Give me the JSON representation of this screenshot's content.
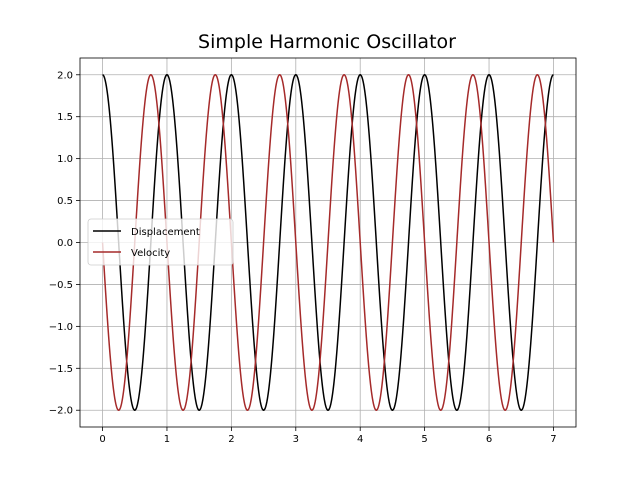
{
  "chart_data": {
    "type": "line",
    "title": "Simple Harmonic Oscillator",
    "xlabel": "",
    "ylabel": "",
    "xlim": [
      -0.35,
      7.35
    ],
    "ylim": [
      -2.2,
      2.2
    ],
    "xticks": [
      0,
      1,
      2,
      3,
      4,
      5,
      6,
      7
    ],
    "xtick_labels": [
      "0",
      "1",
      "2",
      "3",
      "4",
      "5",
      "6",
      "7"
    ],
    "yticks": [
      -2.0,
      -1.5,
      -1.0,
      -0.5,
      0.0,
      0.5,
      1.0,
      1.5,
      2.0
    ],
    "ytick_labels": [
      "−2.0",
      "−1.5",
      "−1.0",
      "−0.5",
      "0.0",
      "0.5",
      "1.0",
      "1.5",
      "2.0"
    ],
    "grid": true,
    "legend_position": "center-left",
    "series": [
      {
        "name": "Displacement",
        "color": "#000000",
        "function": "2*cos(2*pi*t)",
        "x_range": [
          0,
          7
        ],
        "peaks_at_x": [
          0,
          1,
          2,
          3,
          4,
          5,
          6,
          7
        ],
        "troughs_at_x": [
          0.5,
          1.5,
          2.5,
          3.5,
          4.5,
          5.5,
          6.5
        ]
      },
      {
        "name": "Velocity",
        "color": "#a52a2a",
        "function": "-2*sin(2*pi*t)",
        "x_range": [
          0,
          7
        ],
        "peaks_at_x": [
          0.75,
          1.75,
          2.75,
          3.75,
          4.75,
          5.75,
          6.75
        ],
        "troughs_at_x": [
          0.25,
          1.25,
          2.25,
          3.25,
          4.25,
          5.25,
          6.25
        ]
      }
    ]
  }
}
